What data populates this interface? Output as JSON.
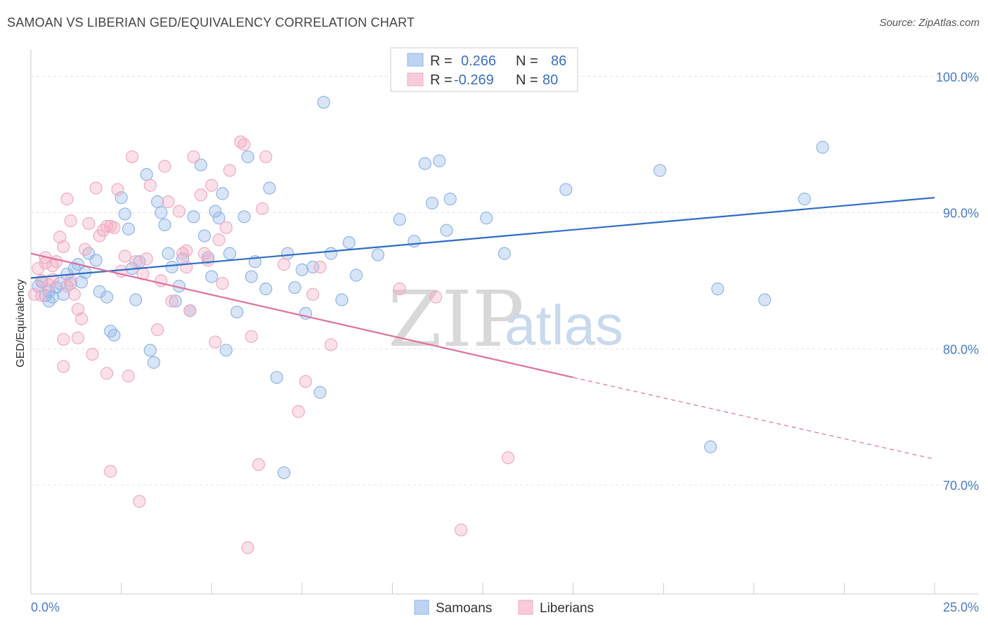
{
  "header": {
    "title": "SAMOAN VS LIBERIAN GED/EQUIVALENCY CORRELATION CHART",
    "source": "Source: ZipAtlas.com"
  },
  "watermark": {
    "zip": "ZIP",
    "atlas": "atlas"
  },
  "legend": {
    "rows": [
      {
        "r_label": "R =",
        "r_value": "0.266",
        "n_label": "N =",
        "n_value": "86"
      },
      {
        "r_label": "R =",
        "r_value": "-0.269",
        "n_label": "N =",
        "n_value": "80"
      }
    ]
  },
  "chart_data": {
    "type": "scatter",
    "title": "SAMOAN VS LIBERIAN GED/EQUIVALENCY CORRELATION CHART",
    "xlabel": "",
    "ylabel": "GED/Equivalency",
    "xlim": [
      0,
      25
    ],
    "ylim": [
      62,
      102
    ],
    "x_tick_labels": [
      "0.0%",
      "25.0%"
    ],
    "y_ticks": [
      70,
      80,
      90,
      100
    ],
    "y_tick_labels": [
      "70.0%",
      "80.0%",
      "90.0%",
      "100.0%"
    ],
    "grid": true,
    "legend_position": "top-center",
    "colors": {
      "samoans": "#8fb5e8",
      "samoans_line": "#2f6cc6",
      "liberians": "#f2a9c0",
      "liberians_line": "#e0719a"
    },
    "series": [
      {
        "name": "Samoans",
        "R": 0.266,
        "N": 86,
        "trend": {
          "x0": 0,
          "y0": 85.2,
          "x1": 25,
          "y1": 91.1
        },
        "points": [
          [
            0.2,
            84.6
          ],
          [
            0.3,
            84.9
          ],
          [
            0.4,
            83.9
          ],
          [
            0.5,
            84.2
          ],
          [
            0.5,
            83.5
          ],
          [
            0.6,
            83.8
          ],
          [
            0.7,
            84.5
          ],
          [
            0.8,
            84.8
          ],
          [
            1.0,
            85.5
          ],
          [
            1.1,
            84.8
          ],
          [
            0.9,
            84.0
          ],
          [
            1.2,
            85.9
          ],
          [
            1.3,
            86.2
          ],
          [
            1.4,
            84.9
          ],
          [
            1.5,
            85.6
          ],
          [
            1.6,
            87.0
          ],
          [
            1.8,
            86.5
          ],
          [
            1.9,
            84.2
          ],
          [
            2.1,
            83.8
          ],
          [
            2.2,
            81.3
          ],
          [
            2.3,
            81.0
          ],
          [
            2.5,
            91.1
          ],
          [
            2.6,
            89.9
          ],
          [
            2.7,
            88.8
          ],
          [
            2.8,
            85.9
          ],
          [
            2.9,
            83.6
          ],
          [
            3.0,
            86.4
          ],
          [
            3.2,
            92.8
          ],
          [
            3.3,
            79.9
          ],
          [
            3.4,
            79.0
          ],
          [
            3.5,
            90.8
          ],
          [
            3.6,
            90.0
          ],
          [
            3.7,
            89.1
          ],
          [
            3.8,
            87.0
          ],
          [
            3.9,
            86.0
          ],
          [
            4.0,
            83.5
          ],
          [
            4.1,
            84.6
          ],
          [
            4.2,
            86.6
          ],
          [
            4.4,
            82.8
          ],
          [
            4.5,
            89.7
          ],
          [
            4.7,
            93.5
          ],
          [
            4.8,
            88.3
          ],
          [
            4.9,
            86.7
          ],
          [
            5.0,
            85.3
          ],
          [
            5.1,
            90.1
          ],
          [
            5.2,
            89.6
          ],
          [
            5.3,
            91.4
          ],
          [
            5.4,
            79.9
          ],
          [
            5.5,
            87.0
          ],
          [
            5.7,
            82.7
          ],
          [
            5.9,
            89.7
          ],
          [
            6.0,
            94.1
          ],
          [
            6.1,
            85.3
          ],
          [
            6.2,
            86.4
          ],
          [
            6.5,
            84.4
          ],
          [
            6.6,
            91.8
          ],
          [
            6.8,
            77.9
          ],
          [
            7.0,
            70.9
          ],
          [
            7.1,
            87.0
          ],
          [
            7.3,
            84.5
          ],
          [
            7.5,
            85.8
          ],
          [
            7.6,
            82.6
          ],
          [
            7.8,
            86.0
          ],
          [
            8.0,
            76.8
          ],
          [
            8.1,
            98.1
          ],
          [
            8.3,
            87.0
          ],
          [
            8.6,
            83.6
          ],
          [
            8.8,
            87.8
          ],
          [
            9.0,
            85.4
          ],
          [
            9.6,
            86.9
          ],
          [
            10.2,
            89.5
          ],
          [
            10.6,
            87.9
          ],
          [
            10.9,
            93.6
          ],
          [
            11.1,
            90.7
          ],
          [
            11.3,
            93.8
          ],
          [
            11.5,
            88.7
          ],
          [
            11.6,
            91.0
          ],
          [
            12.6,
            89.6
          ],
          [
            13.1,
            87.0
          ],
          [
            14.8,
            91.7
          ],
          [
            17.4,
            93.1
          ],
          [
            18.8,
            72.8
          ],
          [
            19.0,
            84.4
          ],
          [
            20.3,
            83.6
          ],
          [
            21.4,
            91.0
          ],
          [
            21.9,
            94.8
          ]
        ]
      },
      {
        "name": "Liberians",
        "R": -0.269,
        "N": 80,
        "trend": {
          "x0": 0,
          "y0": 87.0,
          "x1": 15.0,
          "y1": 77.9,
          "dashed_to": {
            "x": 25,
            "y": 71.9
          }
        },
        "points": [
          [
            0.1,
            84.0
          ],
          [
            0.2,
            85.9
          ],
          [
            0.3,
            85.0
          ],
          [
            0.4,
            86.7
          ],
          [
            0.5,
            84.7
          ],
          [
            0.6,
            86.1
          ],
          [
            0.7,
            86.4
          ],
          [
            0.8,
            88.2
          ],
          [
            0.9,
            87.5
          ],
          [
            1.0,
            84.6
          ],
          [
            0.9,
            80.7
          ],
          [
            0.9,
            78.7
          ],
          [
            1.0,
            91.0
          ],
          [
            1.1,
            89.4
          ],
          [
            1.2,
            84.0
          ],
          [
            1.3,
            80.8
          ],
          [
            1.3,
            82.9
          ],
          [
            1.4,
            82.2
          ],
          [
            1.5,
            87.3
          ],
          [
            1.6,
            89.2
          ],
          [
            1.7,
            79.6
          ],
          [
            1.8,
            91.8
          ],
          [
            1.9,
            88.3
          ],
          [
            2.0,
            88.7
          ],
          [
            2.1,
            78.2
          ],
          [
            2.2,
            89.0
          ],
          [
            2.3,
            88.9
          ],
          [
            2.4,
            91.7
          ],
          [
            2.5,
            85.7
          ],
          [
            2.6,
            86.8
          ],
          [
            2.2,
            71.0
          ],
          [
            2.7,
            78.0
          ],
          [
            2.8,
            94.1
          ],
          [
            2.9,
            86.4
          ],
          [
            3.0,
            68.8
          ],
          [
            3.1,
            85.5
          ],
          [
            3.3,
            92.0
          ],
          [
            3.5,
            81.4
          ],
          [
            3.6,
            85.0
          ],
          [
            3.7,
            93.4
          ],
          [
            3.8,
            90.8
          ],
          [
            3.9,
            83.5
          ],
          [
            4.1,
            90.1
          ],
          [
            4.2,
            87.0
          ],
          [
            4.3,
            86.0
          ],
          [
            4.4,
            82.8
          ],
          [
            4.5,
            94.1
          ],
          [
            4.7,
            91.3
          ],
          [
            4.8,
            87.0
          ],
          [
            4.9,
            86.5
          ],
          [
            5.0,
            92.0
          ],
          [
            5.1,
            80.5
          ],
          [
            5.2,
            88.0
          ],
          [
            5.3,
            84.8
          ],
          [
            5.4,
            88.9
          ],
          [
            5.5,
            93.1
          ],
          [
            5.8,
            95.2
          ],
          [
            5.9,
            95.0
          ],
          [
            6.0,
            65.4
          ],
          [
            6.1,
            80.9
          ],
          [
            6.3,
            71.5
          ],
          [
            6.4,
            90.3
          ],
          [
            6.5,
            94.1
          ],
          [
            7.0,
            86.2
          ],
          [
            7.4,
            75.4
          ],
          [
            7.6,
            77.6
          ],
          [
            7.8,
            84.0
          ],
          [
            8.0,
            86.0
          ],
          [
            8.3,
            80.3
          ],
          [
            10.2,
            84.4
          ],
          [
            11.2,
            83.8
          ],
          [
            11.9,
            66.7
          ],
          [
            13.2,
            72.0
          ],
          [
            0.3,
            83.9
          ],
          [
            0.6,
            85.1
          ],
          [
            1.1,
            85.0
          ],
          [
            2.1,
            89.0
          ],
          [
            3.2,
            86.6
          ],
          [
            4.3,
            87.2
          ],
          [
            0.4,
            86.3
          ]
        ]
      }
    ]
  },
  "bottom_legend": {
    "samoans_label": "Samoans",
    "liberians_label": "Liberians"
  }
}
